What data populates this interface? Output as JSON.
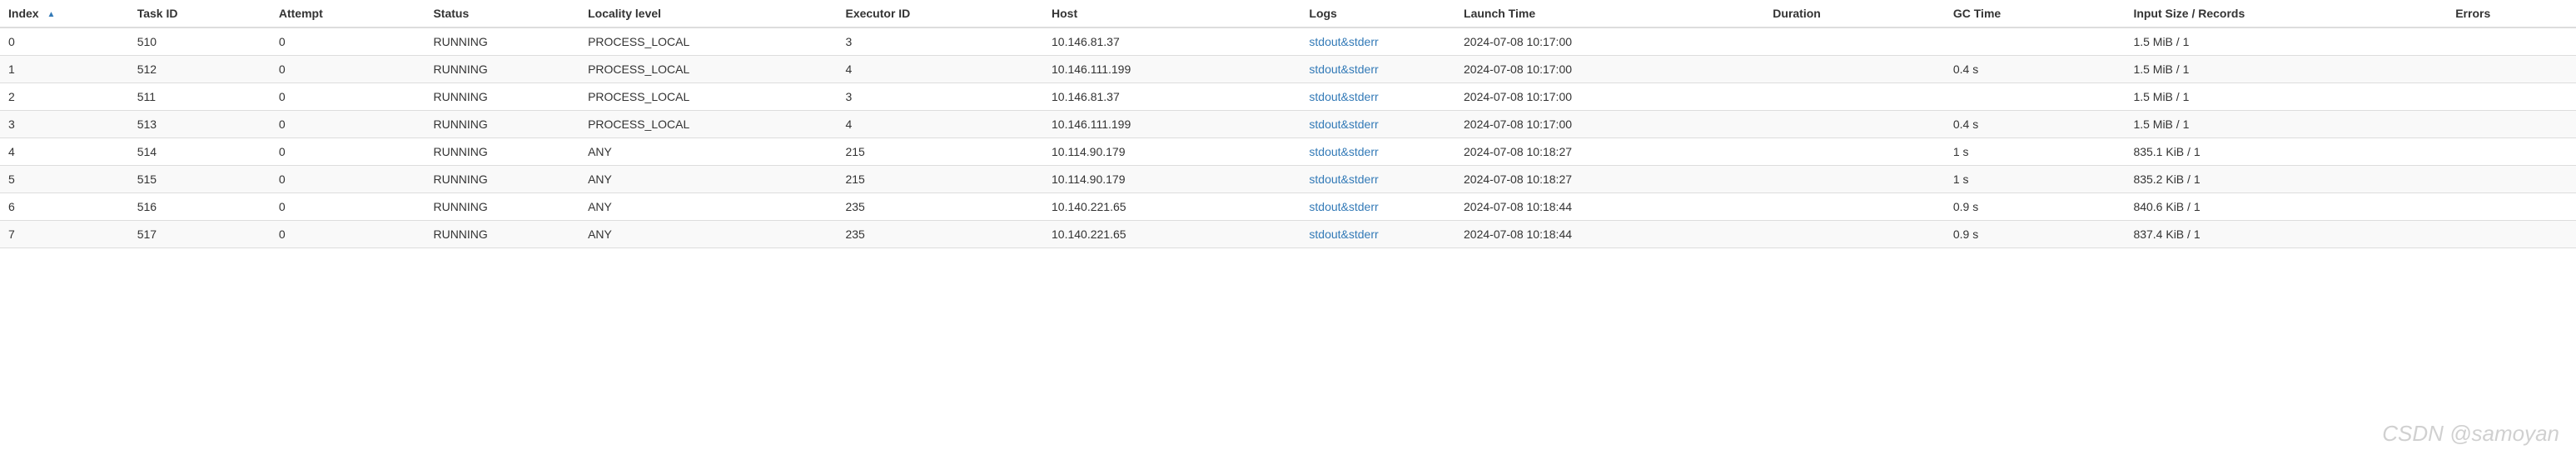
{
  "table": {
    "columns": [
      {
        "key": "index",
        "label": "Index",
        "sorted": true
      },
      {
        "key": "taskId",
        "label": "Task ID"
      },
      {
        "key": "attempt",
        "label": "Attempt"
      },
      {
        "key": "status",
        "label": "Status"
      },
      {
        "key": "locality",
        "label": "Locality level"
      },
      {
        "key": "executor",
        "label": "Executor ID"
      },
      {
        "key": "host",
        "label": "Host"
      },
      {
        "key": "logs",
        "label": "Logs"
      },
      {
        "key": "launch",
        "label": "Launch Time"
      },
      {
        "key": "duration",
        "label": "Duration"
      },
      {
        "key": "gc",
        "label": "GC Time"
      },
      {
        "key": "input",
        "label": "Input Size / Records"
      },
      {
        "key": "errors",
        "label": "Errors"
      }
    ],
    "logLinkText": "stdout&stderr",
    "rows": [
      {
        "index": "0",
        "taskId": "510",
        "attempt": "0",
        "status": "RUNNING",
        "locality": "PROCESS_LOCAL",
        "executor": "3",
        "host": "10.146.81.37",
        "launch": "2024-07-08 10:17:00",
        "duration": "",
        "gc": "",
        "input": "1.5 MiB / 1",
        "errors": ""
      },
      {
        "index": "1",
        "taskId": "512",
        "attempt": "0",
        "status": "RUNNING",
        "locality": "PROCESS_LOCAL",
        "executor": "4",
        "host": "10.146.111.199",
        "launch": "2024-07-08 10:17:00",
        "duration": "",
        "gc": "0.4 s",
        "input": "1.5 MiB / 1",
        "errors": ""
      },
      {
        "index": "2",
        "taskId": "511",
        "attempt": "0",
        "status": "RUNNING",
        "locality": "PROCESS_LOCAL",
        "executor": "3",
        "host": "10.146.81.37",
        "launch": "2024-07-08 10:17:00",
        "duration": "",
        "gc": "",
        "input": "1.5 MiB / 1",
        "errors": ""
      },
      {
        "index": "3",
        "taskId": "513",
        "attempt": "0",
        "status": "RUNNING",
        "locality": "PROCESS_LOCAL",
        "executor": "4",
        "host": "10.146.111.199",
        "launch": "2024-07-08 10:17:00",
        "duration": "",
        "gc": "0.4 s",
        "input": "1.5 MiB / 1",
        "errors": ""
      },
      {
        "index": "4",
        "taskId": "514",
        "attempt": "0",
        "status": "RUNNING",
        "locality": "ANY",
        "executor": "215",
        "host": "10.114.90.179",
        "launch": "2024-07-08 10:18:27",
        "duration": "",
        "gc": "1 s",
        "input": "835.1 KiB / 1",
        "errors": ""
      },
      {
        "index": "5",
        "taskId": "515",
        "attempt": "0",
        "status": "RUNNING",
        "locality": "ANY",
        "executor": "215",
        "host": "10.114.90.179",
        "launch": "2024-07-08 10:18:27",
        "duration": "",
        "gc": "1 s",
        "input": "835.2 KiB / 1",
        "errors": ""
      },
      {
        "index": "6",
        "taskId": "516",
        "attempt": "0",
        "status": "RUNNING",
        "locality": "ANY",
        "executor": "235",
        "host": "10.140.221.65",
        "launch": "2024-07-08 10:18:44",
        "duration": "",
        "gc": "0.9 s",
        "input": "840.6 KiB / 1",
        "errors": ""
      },
      {
        "index": "7",
        "taskId": "517",
        "attempt": "0",
        "status": "RUNNING",
        "locality": "ANY",
        "executor": "235",
        "host": "10.140.221.65",
        "launch": "2024-07-08 10:18:44",
        "duration": "",
        "gc": "0.9 s",
        "input": "837.4 KiB / 1",
        "errors": ""
      }
    ]
  },
  "watermark": "CSDN @samoyan",
  "colors": {
    "link": "#337ab7",
    "border": "#ddd",
    "stripe": "#f9f9f9",
    "text": "#333333"
  }
}
